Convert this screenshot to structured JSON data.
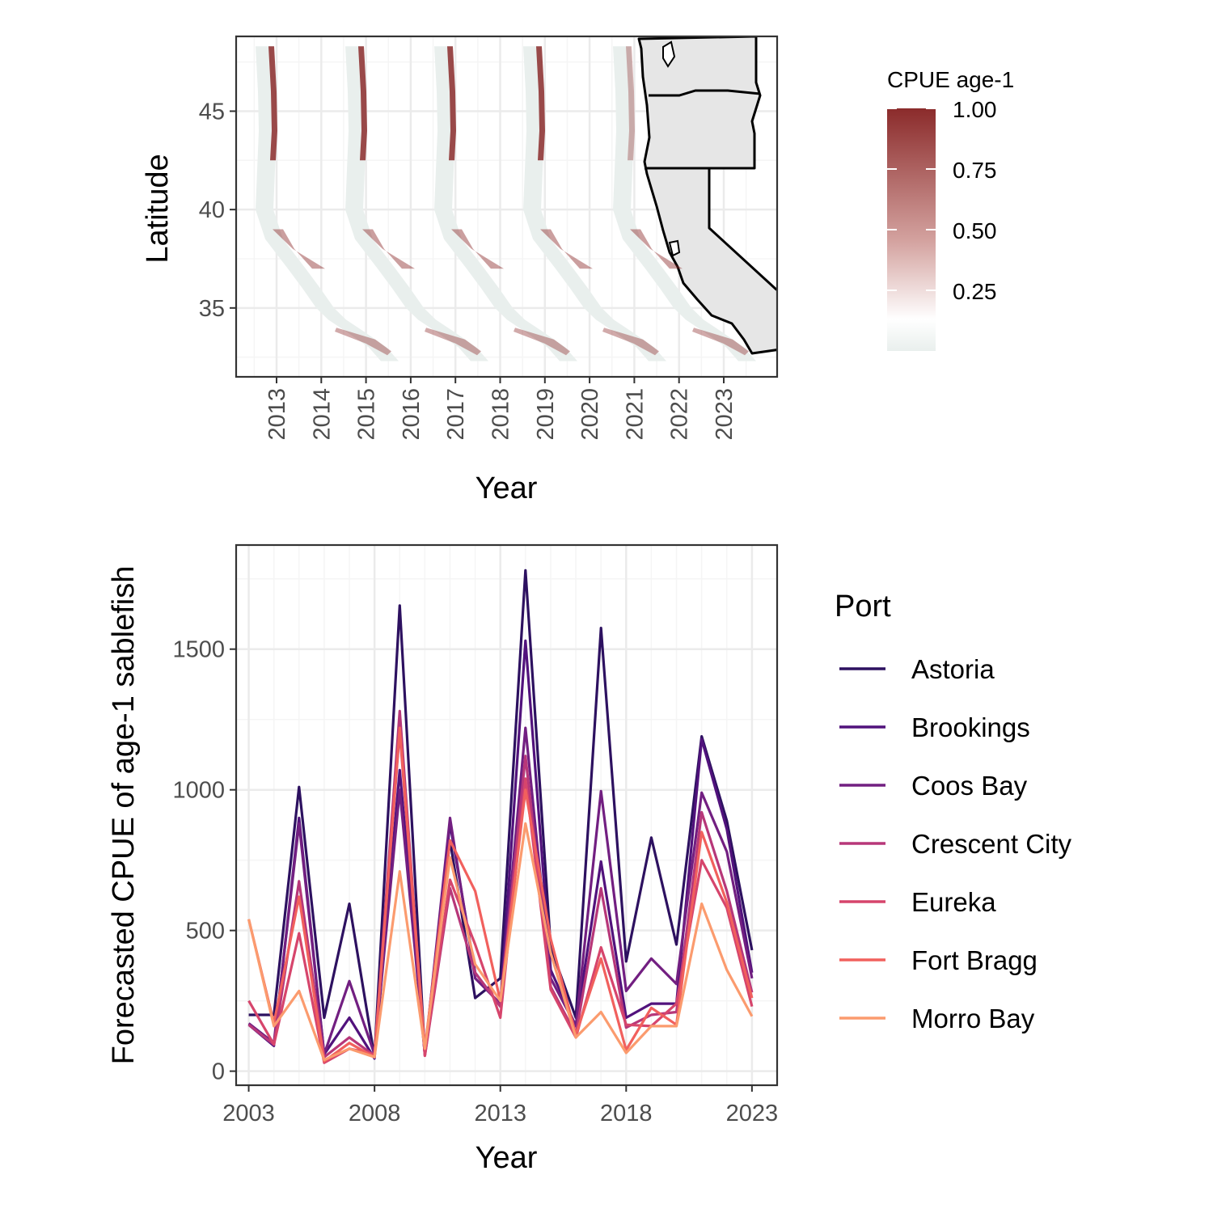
{
  "colors": {
    "grid_major": "#ebebeb",
    "grid_minor": "#f5f5f5",
    "panel_border": "#333333",
    "land": "#e6e6e6",
    "cpue_low": "#e9efed",
    "cpue_mid": "#ffffff",
    "cpue_high": "#8b2b2b"
  },
  "chart_data": [
    {
      "type": "heatmap",
      "xlabel": "Year",
      "ylabel": "Latitude",
      "x_ticks": [
        "2013",
        "2014",
        "2015",
        "2016",
        "2017",
        "2018",
        "2019",
        "2020",
        "2021",
        "2022",
        "2023"
      ],
      "y_ticks": [
        35,
        40,
        45
      ],
      "ylim": [
        31.5,
        48.8
      ],
      "map_years": [
        "2013",
        "2015",
        "2017",
        "2019",
        "2021"
      ],
      "legend": {
        "title": "CPUE age-1",
        "position": "right",
        "ticks": [
          0.25,
          0.5,
          0.75,
          1.0
        ],
        "tick_labels": [
          "0.25",
          "0.50",
          "0.75",
          "1.00"
        ],
        "range": [
          0,
          1
        ]
      }
    },
    {
      "type": "line",
      "xlabel": "Year",
      "ylabel": "Forecasted CPUE of age-1 sablefish",
      "x": [
        2003,
        2004,
        2005,
        2006,
        2007,
        2008,
        2009,
        2010,
        2011,
        2012,
        2013,
        2014,
        2015,
        2016,
        2017,
        2018,
        2019,
        2020,
        2021,
        2022,
        2023
      ],
      "x_ticks": [
        2003,
        2008,
        2013,
        2018,
        2023
      ],
      "y_ticks": [
        0,
        500,
        1000,
        1500
      ],
      "xlim": [
        2002.5,
        2024
      ],
      "ylim": [
        -50,
        1870
      ],
      "legend": {
        "title": "Port",
        "position": "right"
      },
      "series": [
        {
          "name": "Astoria",
          "color": "#2d1160",
          "values": [
            200,
            200,
            1010,
            190,
            595,
            50,
            1655,
            60,
            820,
            260,
            330,
            1780,
            440,
            190,
            1575,
            390,
            830,
            450,
            1190,
            890,
            430
          ]
        },
        {
          "name": "Brookings",
          "color": "#51127c",
          "values": [
            165,
            90,
            900,
            60,
            190,
            45,
            1070,
            60,
            880,
            350,
            230,
            1530,
            360,
            160,
            745,
            190,
            240,
            240,
            1180,
            860,
            350
          ]
        },
        {
          "name": "Coos Bay",
          "color": "#721f81",
          "values": [
            170,
            100,
            880,
            60,
            320,
            60,
            1000,
            60,
            900,
            330,
            240,
            1220,
            330,
            160,
            995,
            285,
            400,
            310,
            990,
            780,
            330
          ]
        },
        {
          "name": "Crescent City",
          "color": "#b73779",
          "values": [
            165,
            95,
            675,
            50,
            120,
            55,
            1280,
            55,
            650,
            350,
            230,
            1120,
            300,
            130,
            650,
            155,
            200,
            210,
            920,
            640,
            280
          ]
        },
        {
          "name": "Eureka",
          "color": "#d6456c",
          "values": [
            250,
            95,
            490,
            30,
            80,
            60,
            1210,
            55,
            680,
            450,
            190,
            1040,
            290,
            120,
            440,
            165,
            160,
            240,
            750,
            580,
            230
          ]
        },
        {
          "name": "Fort Bragg",
          "color": "#f1605d",
          "values": [
            540,
            170,
            620,
            35,
            100,
            50,
            1220,
            80,
            820,
            640,
            250,
            1000,
            470,
            130,
            400,
            75,
            225,
            165,
            850,
            600,
            260
          ]
        },
        {
          "name": "Morro Bay",
          "color": "#fb9b6e",
          "values": [
            540,
            160,
            285,
            40,
            80,
            50,
            710,
            80,
            760,
            380,
            250,
            880,
            420,
            120,
            210,
            65,
            160,
            160,
            595,
            360,
            195
          ]
        }
      ]
    }
  ]
}
